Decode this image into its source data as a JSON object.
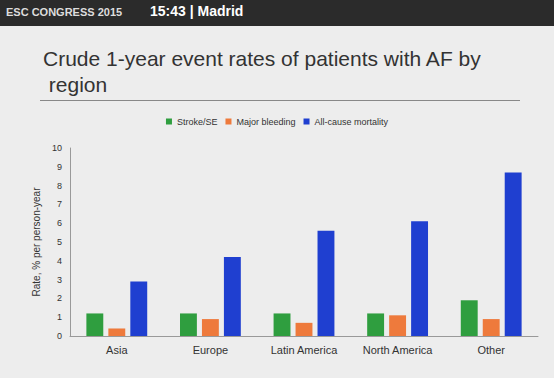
{
  "chart_data": {
    "type": "bar",
    "title": "Crude 1-year event rates of patients with AF by region",
    "annotations": [
      "ESC CONGRESS 2015",
      "15:43 | Madrid"
    ],
    "y_label": "Rate, % per person-year",
    "categories": [
      "Asia",
      "Europe",
      "Latin America",
      "North America",
      "Other"
    ],
    "series": [
      {
        "name": "Stroke/SE",
        "color": "#2f9e3f",
        "values": [
          1.2,
          1.2,
          1.2,
          1.2,
          1.9
        ]
      },
      {
        "name": "Major bleeding",
        "color": "#ee7a3c",
        "values": [
          0.4,
          0.9,
          0.7,
          1.1,
          0.9
        ]
      },
      {
        "name": "All-cause mortality",
        "color": "#1f3fd0",
        "values": [
          2.9,
          4.2,
          5.6,
          6.1,
          8.7
        ]
      }
    ],
    "ylim": [
      0,
      10
    ],
    "yticks": [
      0,
      1,
      2,
      3,
      4,
      5,
      6,
      7,
      8,
      9,
      10
    ],
    "grid": false,
    "legend": "top"
  }
}
